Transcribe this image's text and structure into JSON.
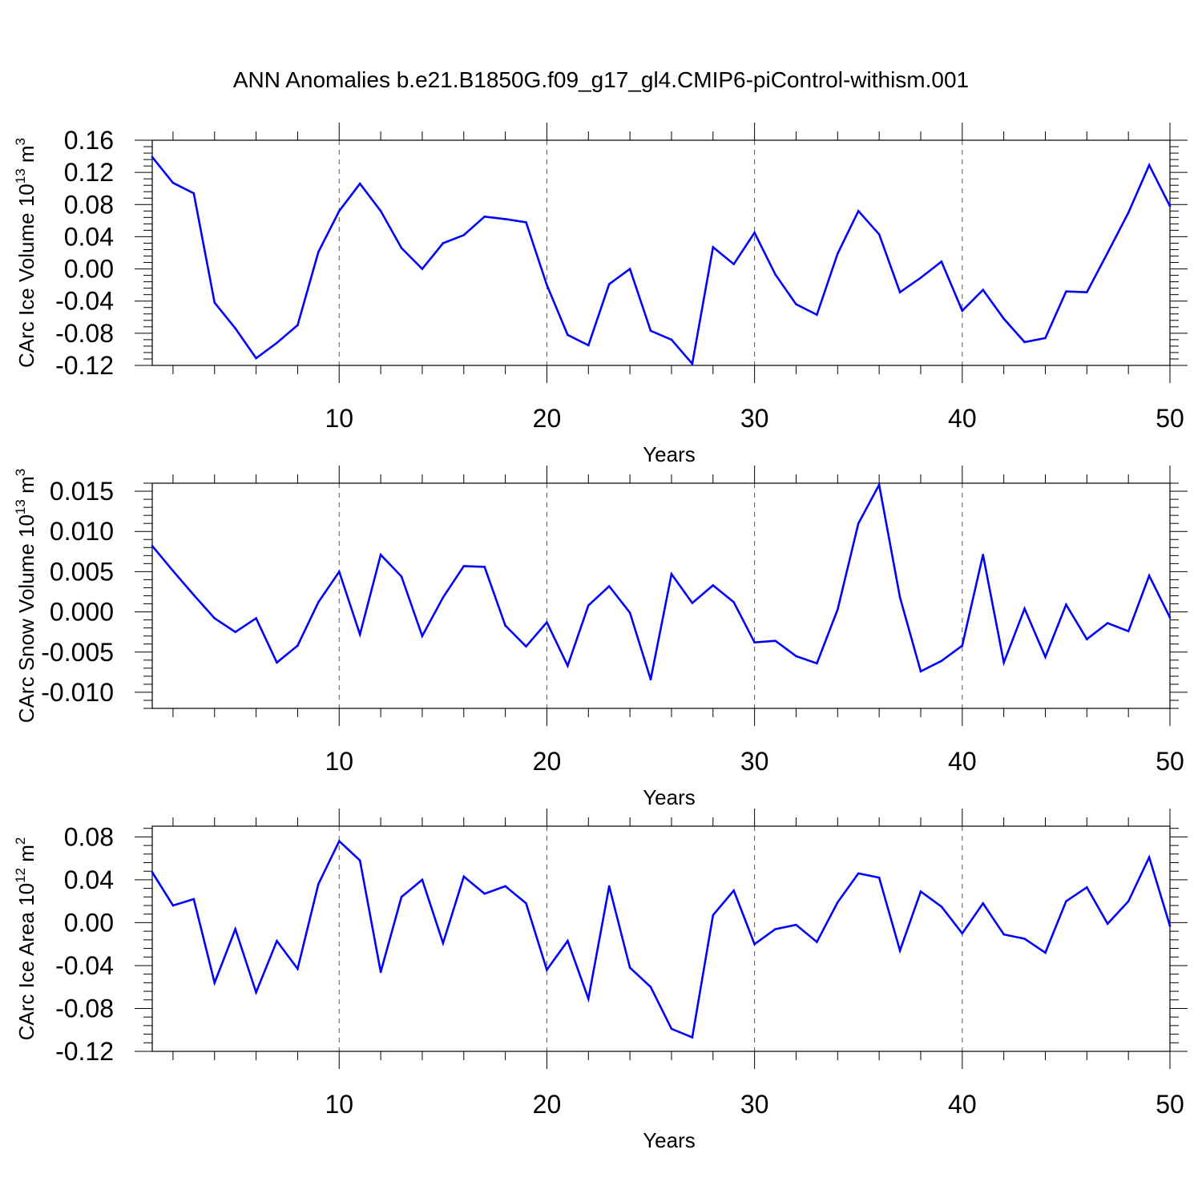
{
  "title": "ANN Anomalies b.e21.B1850G.f09_g17_gl4.CMIP6-piControl-withism.001",
  "colors": {
    "line": "#0000ff",
    "axis": "#000000",
    "grid": "#555555"
  },
  "chart_data": [
    {
      "type": "line",
      "xlabel": "Years",
      "ylabel": {
        "base": "CArc Ice Volume 10",
        "exponent": "13",
        "unit": " m",
        "unit_exponent": "3"
      },
      "xlim": [
        1,
        50
      ],
      "ylim": [
        -0.12,
        0.16
      ],
      "xticks": [
        10,
        20,
        30,
        40,
        50
      ],
      "xtick_labels": [
        "10",
        "20",
        "30",
        "40",
        "50"
      ],
      "yticks": [
        -0.12,
        -0.08,
        -0.04,
        0.0,
        0.04,
        0.08,
        0.12,
        0.16
      ],
      "ytick_labels": [
        "-0.12",
        "-0.08",
        "-0.04",
        "0.00",
        "0.04",
        "0.08",
        "0.12",
        "0.16"
      ],
      "grid": "vertical dashed at major x ticks",
      "x": [
        1,
        2,
        3,
        4,
        5,
        6,
        7,
        8,
        9,
        10,
        11,
        12,
        13,
        14,
        15,
        16,
        17,
        18,
        19,
        20,
        21,
        22,
        23,
        24,
        25,
        26,
        27,
        28,
        29,
        30,
        31,
        32,
        33,
        34,
        35,
        36,
        37,
        38,
        39,
        40,
        41,
        42,
        43,
        44,
        45,
        46,
        47,
        48,
        49,
        50
      ],
      "values": [
        0.139,
        0.107,
        0.094,
        -0.042,
        -0.074,
        -0.111,
        -0.092,
        -0.07,
        0.021,
        0.072,
        0.106,
        0.072,
        0.026,
        0.0,
        0.032,
        0.042,
        0.065,
        0.062,
        0.058,
        -0.02,
        -0.082,
        -0.095,
        -0.019,
        0.0,
        -0.077,
        -0.088,
        -0.118,
        0.027,
        0.006,
        0.045,
        -0.007,
        -0.044,
        -0.057,
        0.019,
        0.072,
        0.043,
        -0.029,
        -0.011,
        0.009,
        -0.052,
        -0.026,
        -0.062,
        -0.091,
        -0.086,
        -0.028,
        -0.029,
        0.02,
        0.07,
        0.129,
        0.078
      ]
    },
    {
      "type": "line",
      "xlabel": "Years",
      "ylabel": {
        "base": "CArc Snow Volume 10",
        "exponent": "13",
        "unit": " m",
        "unit_exponent": "3"
      },
      "xlim": [
        1,
        50
      ],
      "ylim": [
        -0.012,
        0.016
      ],
      "xticks": [
        10,
        20,
        30,
        40,
        50
      ],
      "xtick_labels": [
        "10",
        "20",
        "30",
        "40",
        "50"
      ],
      "yticks": [
        -0.01,
        -0.005,
        0.0,
        0.005,
        0.01,
        0.015
      ],
      "ytick_labels": [
        "-0.010",
        "-0.005",
        "0.000",
        "0.005",
        "0.010",
        "0.015"
      ],
      "grid": "vertical dashed at major x ticks",
      "x": [
        1,
        2,
        3,
        4,
        5,
        6,
        7,
        8,
        9,
        10,
        11,
        12,
        13,
        14,
        15,
        16,
        17,
        18,
        19,
        20,
        21,
        22,
        23,
        24,
        25,
        26,
        27,
        28,
        29,
        30,
        31,
        32,
        33,
        34,
        35,
        36,
        37,
        38,
        39,
        40,
        41,
        42,
        43,
        44,
        45,
        46,
        47,
        48,
        49,
        50
      ],
      "values": [
        0.0082,
        0.0051,
        0.0021,
        -0.0008,
        -0.0025,
        -0.0008,
        -0.0063,
        -0.0042,
        0.0012,
        0.005,
        -0.0028,
        0.0071,
        0.0044,
        -0.003,
        0.0018,
        0.0057,
        0.0056,
        -0.0017,
        -0.0043,
        -0.0013,
        -0.0067,
        0.0008,
        0.0032,
        -0.0001,
        -0.0084,
        0.0047,
        0.0011,
        0.0033,
        0.0012,
        -0.0038,
        -0.0036,
        -0.0055,
        -0.0064,
        0.0003,
        0.011,
        0.0158,
        0.0018,
        -0.0074,
        -0.0061,
        -0.0042,
        0.0071,
        -0.0063,
        0.0004,
        -0.0056,
        0.0009,
        -0.0034,
        -0.0014,
        -0.0024,
        0.0045,
        -0.0007
      ]
    },
    {
      "type": "line",
      "xlabel": "Years",
      "ylabel": {
        "base": "CArc Ice Area 10",
        "exponent": "12",
        "unit": " m",
        "unit_exponent": "2"
      },
      "xlim": [
        1,
        50
      ],
      "ylim": [
        -0.12,
        0.09
      ],
      "xticks": [
        10,
        20,
        30,
        40,
        50
      ],
      "xtick_labels": [
        "10",
        "20",
        "30",
        "40",
        "50"
      ],
      "yticks": [
        -0.12,
        -0.08,
        -0.04,
        0.0,
        0.04,
        0.08
      ],
      "ytick_labels": [
        "-0.12",
        "-0.08",
        "-0.04",
        "0.00",
        "0.04",
        "0.08"
      ],
      "grid": "vertical dashed at major x ticks",
      "x": [
        1,
        2,
        3,
        4,
        5,
        6,
        7,
        8,
        9,
        10,
        11,
        12,
        13,
        14,
        15,
        16,
        17,
        18,
        19,
        20,
        21,
        22,
        23,
        24,
        25,
        26,
        27,
        28,
        29,
        30,
        31,
        32,
        33,
        34,
        35,
        36,
        37,
        38,
        39,
        40,
        41,
        42,
        43,
        44,
        45,
        46,
        47,
        48,
        49,
        50
      ],
      "values": [
        0.047,
        0.016,
        0.022,
        -0.056,
        -0.006,
        -0.065,
        -0.017,
        -0.043,
        0.036,
        0.076,
        0.058,
        -0.046,
        0.024,
        0.04,
        -0.019,
        0.043,
        0.027,
        0.034,
        0.018,
        -0.044,
        -0.017,
        -0.071,
        0.034,
        -0.042,
        -0.06,
        -0.099,
        -0.107,
        0.007,
        0.03,
        -0.02,
        -0.006,
        -0.002,
        -0.018,
        0.019,
        0.046,
        0.042,
        -0.026,
        0.029,
        0.015,
        -0.01,
        0.018,
        -0.011,
        -0.015,
        -0.028,
        0.02,
        0.033,
        -0.001,
        0.02,
        0.061,
        -0.003
      ]
    }
  ]
}
